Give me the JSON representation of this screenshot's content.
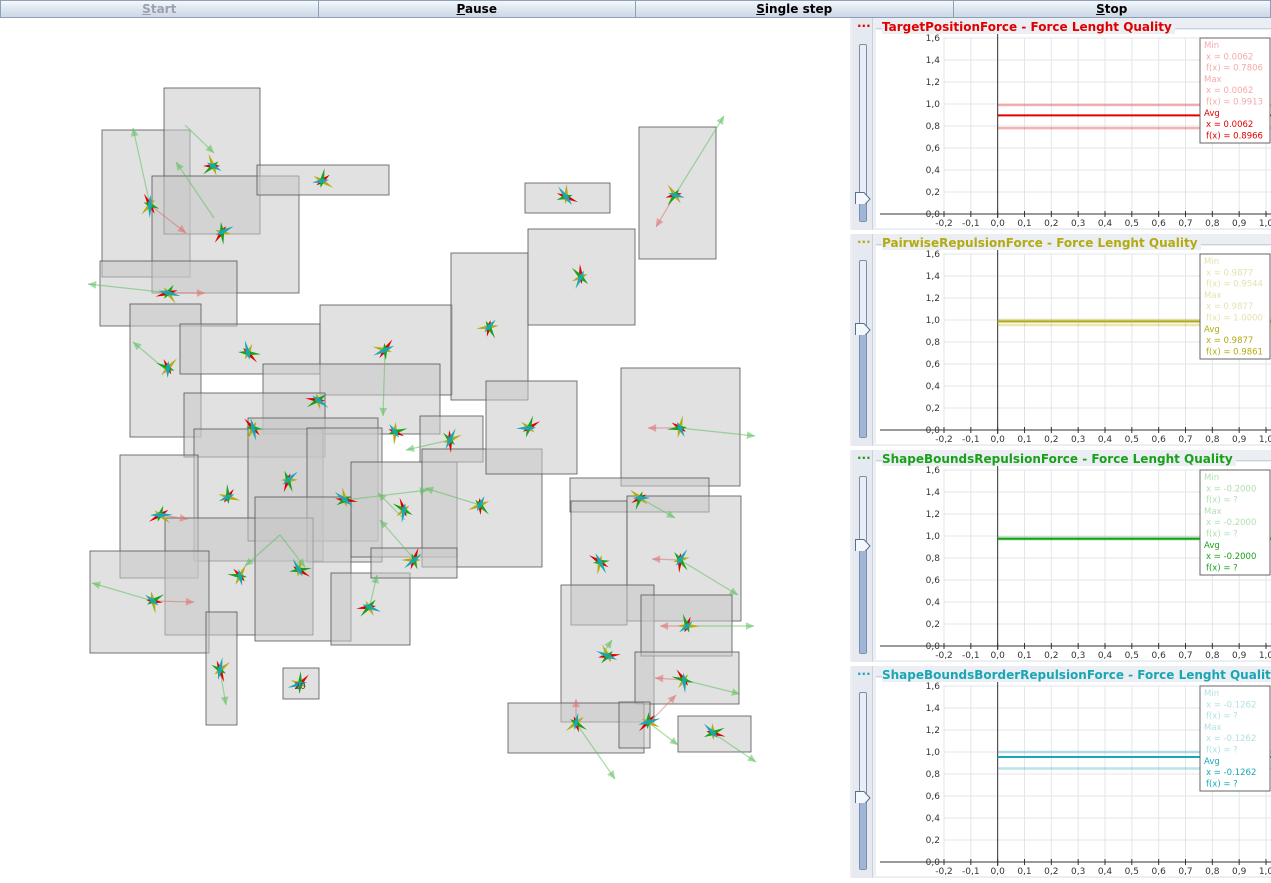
{
  "toolbar": {
    "start": {
      "pre": "",
      "mnemonic": "S",
      "post": "tart"
    },
    "pause": {
      "pre": "",
      "mnemonic": "P",
      "post": "ause"
    },
    "single_step": {
      "pre": "",
      "mnemonic": "S",
      "post": "ingle step"
    },
    "stop": {
      "pre": "",
      "mnemonic": "S",
      "post": "top"
    }
  },
  "simulation": {
    "visible_node_labels": [
      "20"
    ]
  },
  "colors": {
    "target_position": "#e00000",
    "pairwise_repulsion": "#b4aa12",
    "shape_bounds_repulsion": "#19a119",
    "shape_bounds_border_repulsion": "#1aa7b4"
  },
  "panels": [
    {
      "menu": "...",
      "title": "TargetPositionForce - Force Lenght Quality",
      "color": "#e00000",
      "slider_value": 0.12,
      "legend": {
        "min": {
          "label": "Min",
          "x": "x =   0.0062",
          "fx": "f(x) =   0.7806"
        },
        "max": {
          "label": "Max",
          "x": "x =   0.0062",
          "fx": "f(x) =   0.9913"
        },
        "avg": {
          "label": "Avg",
          "x": "x =   0.0062",
          "fx": "f(x) =   0.8966"
        }
      },
      "lines": {
        "min": 0.7806,
        "max": 0.9913,
        "avg": 0.8966
      }
    },
    {
      "menu": "...",
      "title": "PairwiseRepulsionForce - Force Lenght Quality",
      "color": "#b4aa12",
      "slider_value": 0.6,
      "legend": {
        "min": {
          "label": "Min",
          "x": "x =   0.9877",
          "fx": "f(x) =   0.9544"
        },
        "max": {
          "label": "Max",
          "x": "x =   0.9877",
          "fx": "f(x) =   1.0000"
        },
        "avg": {
          "label": "Avg",
          "x": "x =   0.9877",
          "fx": "f(x) =   0.9861"
        }
      },
      "lines": {
        "min": 0.9544,
        "max": 1.0,
        "avg": 0.9861
      }
    },
    {
      "menu": "...",
      "title": "ShapeBoundsRepulsionForce - Force Lenght Quality",
      "color": "#19a119",
      "slider_value": 0.6,
      "legend": {
        "min": {
          "label": "Min",
          "x": "x =   -0.2000",
          "fx": "f(x) = ?"
        },
        "max": {
          "label": "Max",
          "x": "x =   -0.2000",
          "fx": "f(x) = ?"
        },
        "avg": {
          "label": "Avg",
          "x": "x =   -0.2000",
          "fx": "f(x) = ?"
        }
      },
      "lines": {
        "min": 0.97,
        "max": 0.985,
        "avg": 0.975
      }
    },
    {
      "menu": "...",
      "title": "ShapeBoundsBorderRepulsionForce - Force Lenght Quality",
      "color": "#1aa7b4",
      "slider_value": 0.4,
      "legend": {
        "min": {
          "label": "Min",
          "x": "x =   -0.1262",
          "fx": "f(x) = ?"
        },
        "max": {
          "label": "Max",
          "x": "x =   -0.1262",
          "fx": "f(x) = ?"
        },
        "avg": {
          "label": "Avg",
          "x": "x =   -0.1262",
          "fx": "f(x) = ?"
        }
      },
      "lines": {
        "min": 0.85,
        "max": 1.0,
        "avg": 0.955
      }
    }
  ],
  "chart_axes": {
    "x_ticks": [
      "-0,2",
      "-0,1",
      "0,0",
      "0,1",
      "0,2",
      "0,3",
      "0,4",
      "0,5",
      "0,6",
      "0,7",
      "0,8",
      "0,9",
      "1,0"
    ],
    "y_ticks": [
      "0,0",
      "0,2",
      "0,4",
      "0,6",
      "0,8",
      "1,0",
      "1,2",
      "1,4",
      "1,6"
    ],
    "xlim": [
      -0.2,
      1.0
    ],
    "ylim": [
      0.0,
      1.6
    ]
  }
}
